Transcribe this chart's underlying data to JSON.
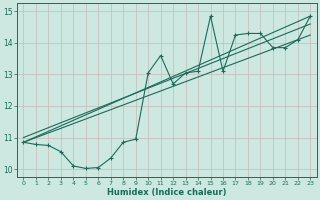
{
  "title": "",
  "xlabel": "Humidex (Indice chaleur)",
  "ylabel": "",
  "xlim": [
    -0.5,
    23.5
  ],
  "ylim": [
    9.75,
    15.25
  ],
  "yticks": [
    10,
    11,
    12,
    13,
    14,
    15
  ],
  "xticks": [
    0,
    1,
    2,
    3,
    4,
    5,
    6,
    7,
    8,
    9,
    10,
    11,
    12,
    13,
    14,
    15,
    16,
    17,
    18,
    19,
    20,
    21,
    22,
    23
  ],
  "bg_color": "#cce8e0",
  "grid_color": "#b8d8d0",
  "line_color": "#1a6b5a",
  "line1_x": [
    0,
    1,
    2,
    3,
    4,
    5,
    6,
    7,
    8,
    9,
    10,
    11,
    12,
    13,
    14,
    15,
    16,
    17,
    18,
    19,
    20,
    21,
    22,
    23
  ],
  "line1_y": [
    10.85,
    10.78,
    10.75,
    10.55,
    10.1,
    10.02,
    10.05,
    10.35,
    10.85,
    10.95,
    13.05,
    13.6,
    12.7,
    13.05,
    13.1,
    14.85,
    13.1,
    14.25,
    14.3,
    14.3,
    13.85,
    13.85,
    14.1,
    14.85
  ],
  "line2_x": [
    0,
    23
  ],
  "line2_y": [
    10.85,
    14.85
  ],
  "line3_x": [
    0,
    23
  ],
  "line3_y": [
    11.0,
    14.6
  ],
  "line4_x": [
    0,
    23
  ],
  "line4_y": [
    10.85,
    14.25
  ]
}
